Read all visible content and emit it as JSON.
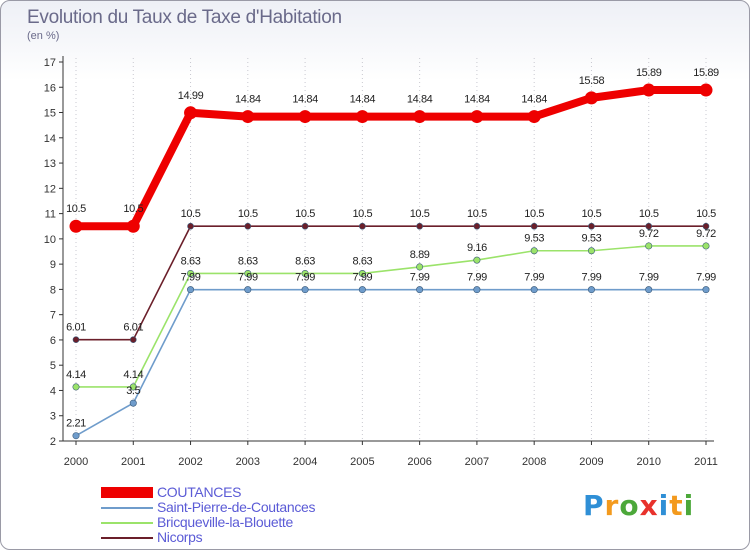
{
  "title": "Evolution du Taux de Taxe d'Habitation",
  "subtitle": "(en %)",
  "chart_data": {
    "type": "line",
    "x": [
      "2000",
      "2001",
      "2002",
      "2003",
      "2004",
      "2005",
      "2006",
      "2007",
      "2008",
      "2009",
      "2010",
      "2011"
    ],
    "ylim": [
      2,
      17
    ],
    "yticks": [
      2,
      3,
      4,
      5,
      6,
      7,
      8,
      9,
      10,
      11,
      12,
      13,
      14,
      15,
      16,
      17
    ],
    "ytick_labels": [
      "2",
      "3",
      "4",
      "5",
      "6",
      "7",
      "8",
      "9",
      "10",
      "11",
      "12",
      "13",
      "14",
      "15",
      "16",
      "17"
    ],
    "xlabel": "",
    "ylabel": "(en %)",
    "grid": "vertical",
    "legend_position": "bottom-left",
    "series": [
      {
        "name": "Nicorps",
        "color": "#6b1f2a",
        "values": [
          6.01,
          6.01,
          10.5,
          10.5,
          10.5,
          10.5,
          10.5,
          10.5,
          10.5,
          10.5,
          10.5,
          10.5
        ],
        "labels": [
          "6.01",
          "6.01",
          "10.5",
          "10.5",
          "10.5",
          "10.5",
          "10.5",
          "10.5",
          "10.5",
          "10.5",
          "10.5",
          "10.5"
        ]
      },
      {
        "name": "Bricqueville-la-Blouette",
        "color": "#9be36a",
        "values": [
          4.14,
          4.14,
          8.63,
          8.63,
          8.63,
          8.63,
          8.89,
          9.16,
          9.53,
          9.53,
          9.72,
          9.72
        ],
        "labels": [
          "4.14",
          "4.14",
          "8.63",
          "8.63",
          "8.63",
          "8.63",
          "8.89",
          "9.16",
          "9.53",
          "9.53",
          "9.72",
          "9.72"
        ]
      },
      {
        "name": "Saint-Pierre-de-Coutances",
        "color": "#6f9ccb",
        "values": [
          2.21,
          3.5,
          7.99,
          7.99,
          7.99,
          7.99,
          7.99,
          7.99,
          7.99,
          7.99,
          7.99,
          7.99
        ],
        "labels": [
          "2.21",
          "3.5",
          "7.99",
          "7.99",
          "7.99",
          "7.99",
          "7.99",
          "7.99",
          "7.99",
          "7.99",
          "7.99",
          "7.99"
        ]
      },
      {
        "name": "COUTANCES",
        "color": "#ee0000",
        "values": [
          10.5,
          10.5,
          14.99,
          14.84,
          14.84,
          14.84,
          14.84,
          14.84,
          14.84,
          15.58,
          15.89,
          15.89
        ],
        "labels": [
          "10.5",
          "10.5",
          "14.99",
          "14.84",
          "14.84",
          "14.84",
          "14.84",
          "14.84",
          "14.84",
          "15.58",
          "15.89",
          "15.89"
        ]
      }
    ],
    "legend": [
      "COUTANCES",
      "Saint-Pierre-de-Coutances",
      "Bricqueville-la-Blouette",
      "Nicorps"
    ]
  },
  "logo": {
    "letters": [
      "P",
      "r",
      "o",
      "x",
      "i",
      "t",
      "i"
    ],
    "colors": [
      "#2f8fd6",
      "#f39a1e",
      "#4ca83a",
      "#e8322c",
      "#2f8fd6",
      "#f39a1e",
      "#4ca83a"
    ]
  }
}
